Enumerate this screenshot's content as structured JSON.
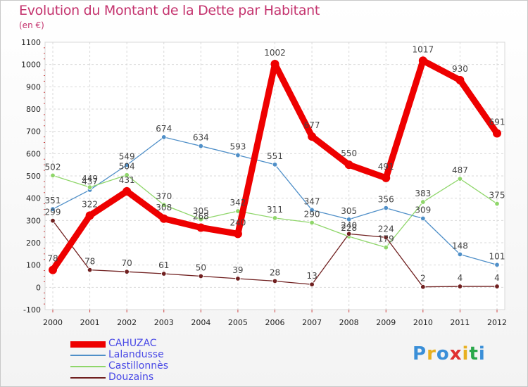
{
  "title": "Evolution du Montant de la Dette par Habitant",
  "subtitle": "(en €)",
  "brand": "Proxiti",
  "brand_colors": [
    "#3a8fd8",
    "#e8b020",
    "#3a8fd8",
    "#e03030",
    "#e8b020",
    "#2aa84a",
    "#3a8fd8"
  ],
  "chart_data": {
    "type": "line",
    "x": [
      "2000",
      "2001",
      "2002",
      "2003",
      "2004",
      "2005",
      "2006",
      "2007",
      "2008",
      "2009",
      "2010",
      "2011",
      "2012"
    ],
    "ylim": [
      -100,
      1100
    ],
    "yticks": [
      "-100",
      "0",
      "100",
      "200",
      "300",
      "400",
      "500",
      "600",
      "700",
      "800",
      "900",
      "1000",
      "1100"
    ],
    "grid": true,
    "legend_position": "bottom-left",
    "series": [
      {
        "name": "Lalandusse",
        "color": "#4f8fc8",
        "width": "thin",
        "values": [
          351,
          437,
          549,
          674,
          634,
          593,
          551,
          347,
          305,
          356,
          309,
          148,
          101
        ],
        "labels": [
          "351",
          "437",
          "549",
          "674",
          "634",
          "593",
          "551",
          "347",
          "305",
          "356",
          "309",
          "148",
          "101"
        ]
      },
      {
        "name": "Castillonnès",
        "color": "#8fd66a",
        "width": "thin",
        "values": [
          502,
          449,
          504,
          370,
          305,
          342,
          311,
          290,
          228,
          179,
          383,
          487,
          375
        ],
        "labels": [
          "502",
          "449",
          "504",
          "370",
          "305",
          "342",
          "311",
          "290",
          "228",
          "179",
          "383",
          "487",
          "375"
        ]
      },
      {
        "name": "Douzains",
        "color": "#702020",
        "width": "thin",
        "values": [
          299,
          78,
          70,
          61,
          50,
          39,
          28,
          13,
          240,
          224,
          2,
          4,
          4
        ],
        "labels": [
          "299",
          "78",
          "70",
          "61",
          "50",
          "39",
          "28",
          "13",
          "240",
          "224",
          "2",
          "4",
          "4"
        ]
      },
      {
        "name": "CAHUZAC",
        "color": "#ee0000",
        "width": "thick",
        "values": [
          78,
          322,
          431,
          308,
          268,
          240,
          1002,
          677,
          550,
          491,
          1017,
          930,
          691
        ],
        "labels": [
          "78",
          "322",
          "431",
          "308",
          "268",
          "240",
          "1002",
          "677",
          "550",
          "491",
          "1017",
          "930",
          "691"
        ]
      }
    ],
    "legend_order": [
      "CAHUZAC",
      "Lalandusse",
      "Castillonnès",
      "Douzains"
    ]
  }
}
